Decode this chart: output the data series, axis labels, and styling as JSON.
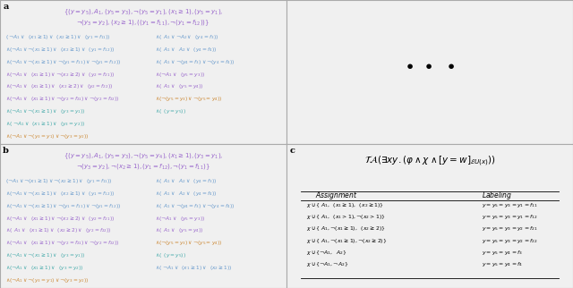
{
  "bg_color": "#f0f0f0",
  "panel_bg": "#f0f0f0",
  "border_color": "#888888",
  "title_color_a": "#8844aa",
  "clause_color_blue": "#6688cc",
  "clause_color_purple": "#9966bb",
  "clause_color_teal": "#44aaaa",
  "panel_a_title_line1": "\\{(y=y_5), A_1, (y_5=y_3), \\neg(y_5=y_1), (x_1\\geq 1), (y_5=y_1),",
  "panel_a_title_line2": "\\neg(y_3=y_2), (x_2\\geq 1), ((y_1=f_{11}), \\neg(y_1=f_{12})\\}",
  "panel_b_title_line1": "\\{(y=y_5), A_1, (y_5=y_3), \\neg(y_5=y_4), (x_1\\geq 1), (y_3=y_1),",
  "panel_b_title_line2": "\\neg(y_3=y_2), \\neg(x_2\\geq 1), (y_1=f_{12}), \\neg(y_1=f_{11})\\}",
  "panel_c_formula": "\\mathcal{TA}(\\exists xy.(\\varphi \\wedge \\chi \\wedge [y=w]_{\\mathcal{E}U(x)}))",
  "table_header_assign": "Assignment",
  "table_header_label": "Labeling",
  "table_rows_left": [
    "\\chi\\cup\\{\\;A_1,\\;\\;(x_1\\geq 1),\\;\\;(x_2\\geq 1)\\}",
    "\\chi\\cup\\{\\;A_1,\\;\\;(x_1>1),\\neg(x_2>1)\\}",
    "\\chi\\cup\\{\\;A_1,\\neg(x_1\\geq 1),\\;\\;(x_2\\geq 2)\\}",
    "\\chi\\cup\\{\\;A_1,\\neg(x_1\\geq 1),\\neg(x_2\\geq 2)\\}",
    "\\chi\\cup\\{\\neg A_1,\\;\\;A_2\\}",
    "\\chi\\cup\\{\\neg A_1,\\neg A_2\\}"
  ],
  "table_rows_right": [
    "y=y_5=y_3=y_1=f_{11}",
    "y=y_5=y_3=y_1=f_{12}",
    "y=y_5=y_3=y_2=f_{21}",
    "y=y_5=y_3=y_2=f_{22}",
    "y=y_5=y_4=f_3",
    "y=y_5=y_4=f_4"
  ],
  "purple": "#9966cc",
  "blue": "#6699cc",
  "teal": "#44aaaa",
  "orange": "#cc8833"
}
